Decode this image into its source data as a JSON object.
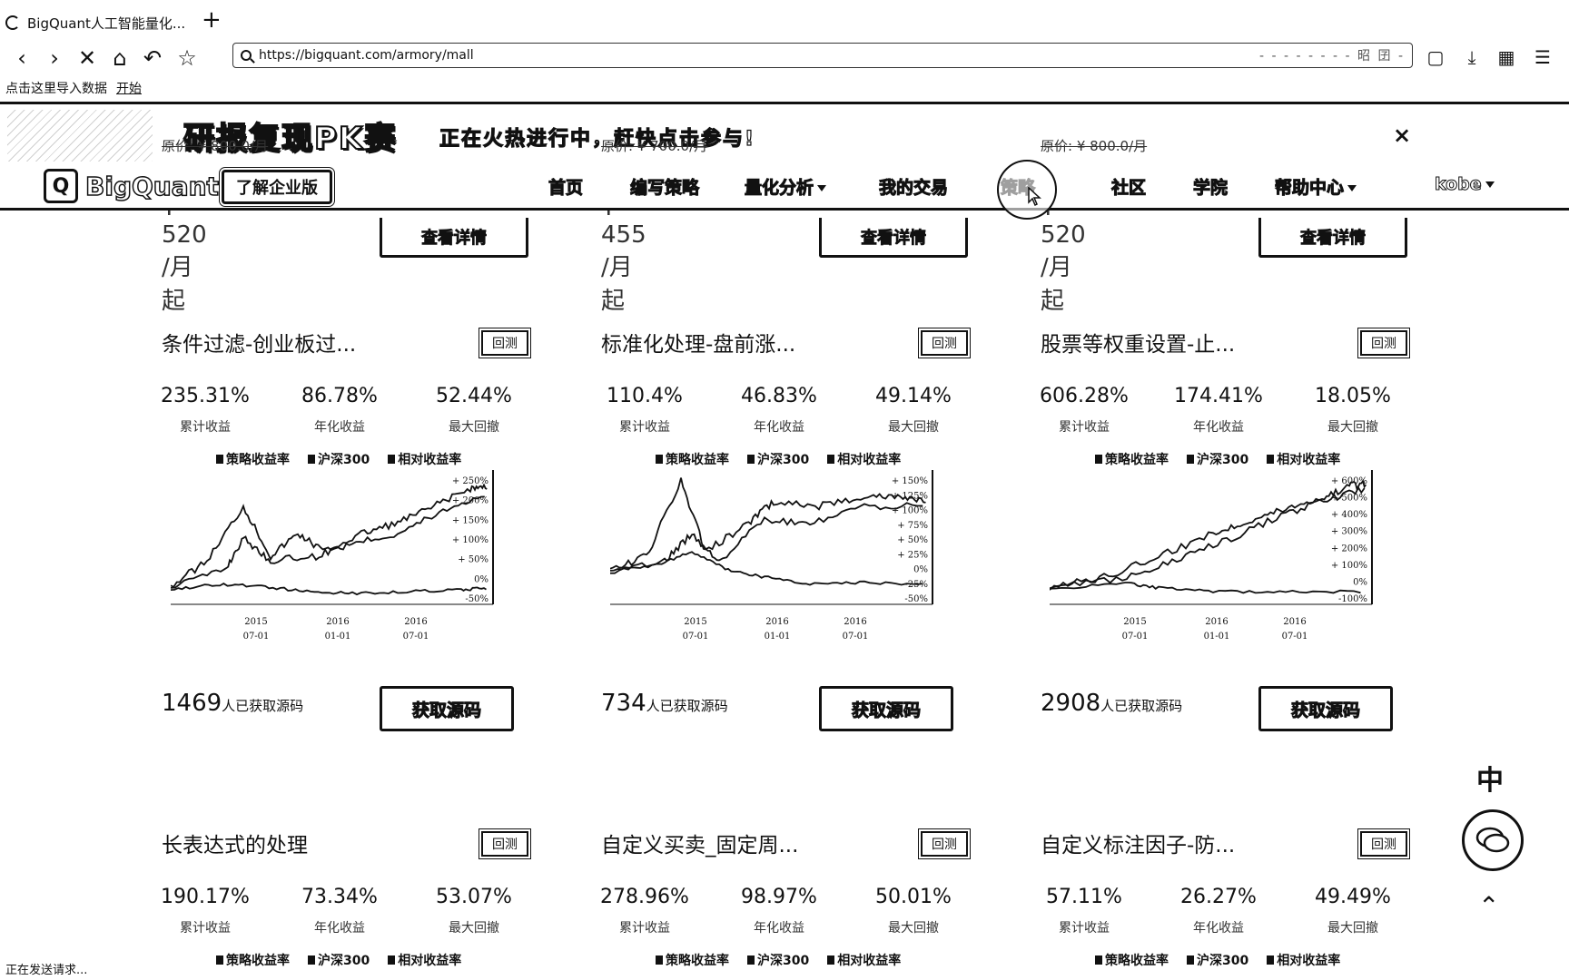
{
  "browser": {
    "tab_title": "BigQuant人工智能量化...",
    "new_tab": "+",
    "url": "https://bigquant.com/armory/mall",
    "url_right": "- - - - -  - - - 昭 囝 -",
    "bookmarks_text": "点击这里导入数据",
    "bookmarks_link": "开始",
    "status": "正在发送请求..."
  },
  "banner": {
    "title": "研报复现PK赛",
    "subtitle": "正在火热进行中，赶快点击参与!",
    "close": "×"
  },
  "header": {
    "brand": "BigQuant",
    "enterprise_btn": "了解企业版",
    "nav": [
      "首页",
      "编写策略",
      "量化分析",
      "我的交易",
      "策略",
      "社区",
      "学院",
      "帮助中心",
      "kobe"
    ]
  },
  "top_cards": [
    {
      "price": "¥ 520 /月起",
      "orig": "原价: ¥ 800.0/月",
      "btn": "查看详情"
    },
    {
      "price": "¥ 455 /月起",
      "orig": "原价: ¥ 700.0/月",
      "btn": "查看详情"
    },
    {
      "price": "¥ 520 /月起",
      "orig": "原价: ¥ 800.0/月",
      "btn": "查看详情"
    }
  ],
  "labels": {
    "cum": "累计收益",
    "ann": "年化收益",
    "dd": "最大回撤",
    "backtest": "回测",
    "get_source": "获取源码",
    "got_source": "人已获取源码",
    "legend": [
      "策略收益率",
      "沪深300",
      "相对收益率"
    ]
  },
  "cards": [
    {
      "title": "条件过滤-创业板过...",
      "cum": "235.31%",
      "ann": "86.78%",
      "dd": "52.44%",
      "count": "1469"
    },
    {
      "title": "标准化处理-盘前涨...",
      "cum": "110.4%",
      "ann": "46.83%",
      "dd": "49.14%",
      "count": "734"
    },
    {
      "title": "股票等权重设置-止...",
      "cum": "606.28%",
      "ann": "174.41%",
      "dd": "18.05%",
      "count": "2908"
    },
    {
      "title": "长表达式的处理",
      "cum": "190.17%",
      "ann": "73.34%",
      "dd": "53.07%"
    },
    {
      "title": "自定义买卖_固定周...",
      "cum": "278.96%",
      "ann": "98.97%",
      "dd": "50.01%"
    },
    {
      "title": "自定义标注因子-防...",
      "cum": "57.11%",
      "ann": "26.27%",
      "dd": "49.49%"
    }
  ],
  "chart_data": [
    {
      "type": "line",
      "x_ticks": [
        "2015\n07-01",
        "2016\n01-01",
        "2016\n07-01"
      ],
      "y_ticks": [
        "+ 250%",
        "+ 200%",
        "+ 150%",
        "+ 100%",
        "+ 50%",
        "0%",
        "-50%"
      ],
      "ylim": [
        -50,
        250
      ]
    },
    {
      "type": "line",
      "x_ticks": [
        "2015\n07-01",
        "2016\n01-01",
        "2016\n07-01"
      ],
      "y_ticks": [
        "+ 150%",
        "+ 125%",
        "+ 100%",
        "+ 75%",
        "+ 50%",
        "+ 25%",
        "0%",
        "-25%",
        "-50%"
      ],
      "ylim": [
        -50,
        150
      ]
    },
    {
      "type": "line",
      "x_ticks": [
        "2015\n07-01",
        "2016\n01-01",
        "2016\n07-01"
      ],
      "y_ticks": [
        "+ 600%",
        "+ 500%",
        "+ 400%",
        "+ 300%",
        "+ 200%",
        "+ 100%",
        "0%",
        "-100%"
      ],
      "ylim": [
        -100,
        600
      ]
    }
  ],
  "floating": {
    "top_icon": "中",
    "up_icon": "⌃"
  }
}
